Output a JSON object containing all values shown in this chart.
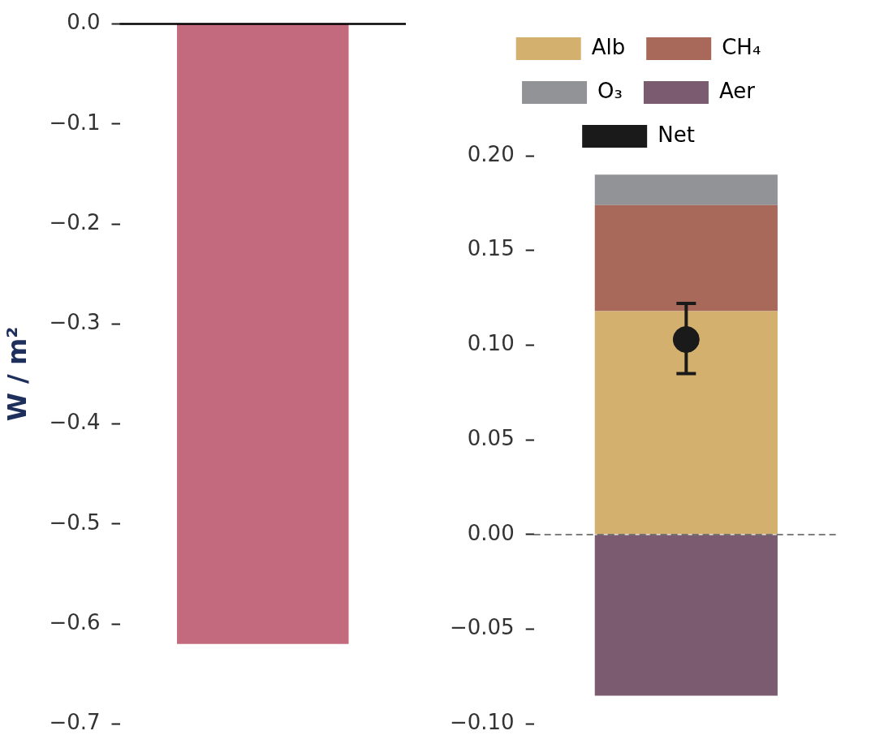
{
  "chart_data": [
    {
      "type": "bar",
      "ylabel": "W / m²",
      "categories": [
        null
      ],
      "values": [
        -0.62
      ],
      "color": "#c46a7e",
      "ylim": [
        -0.7,
        0
      ],
      "yticks": [
        {
          "value": 0,
          "label": "0.0"
        },
        {
          "value": -0.1,
          "label": "−0.1"
        },
        {
          "value": -0.2,
          "label": "−0.2"
        },
        {
          "value": -0.3,
          "label": "−0.3"
        },
        {
          "value": -0.4,
          "label": "−0.4"
        },
        {
          "value": -0.5,
          "label": "−0.5"
        },
        {
          "value": -0.6,
          "label": "−0.6"
        },
        {
          "value": -0.7,
          "label": "−0.7"
        }
      ],
      "ref_lines": [
        {
          "axis": "y",
          "value": 0,
          "color": "#000000",
          "line_style": "solid"
        }
      ],
      "grid": false,
      "legend": false
    },
    {
      "type": "bar",
      "stacked": true,
      "categories": [
        null
      ],
      "legend": "top",
      "grid": false,
      "ylim": [
        -0.1,
        0.2
      ],
      "yticks": [
        {
          "value": 0.2,
          "label": "0.20"
        },
        {
          "value": 0.15,
          "label": "0.15"
        },
        {
          "value": 0.1,
          "label": "0.10"
        },
        {
          "value": 0.05,
          "label": "0.05"
        },
        {
          "value": 0,
          "label": "0.00"
        },
        {
          "value": -0.05,
          "label": "−0.05"
        },
        {
          "value": -0.1,
          "label": "−0.10"
        }
      ],
      "ref_lines": [
        {
          "axis": "y",
          "value": 0,
          "color": "#555555",
          "line_style": "dashed"
        }
      ],
      "series": [
        {
          "name": "Alb",
          "color": "#d4b06f",
          "values": [
            0.118
          ]
        },
        {
          "name": "CH₄",
          "color": "#a8685a",
          "values": [
            0.056
          ]
        },
        {
          "name": "O₃",
          "color": "#929396",
          "values": [
            0.016
          ]
        },
        {
          "name": "Aer",
          "color": "#7b5b70",
          "values": [
            -0.085
          ]
        },
        {
          "name": "Net",
          "type": "scatter",
          "marker": "circle",
          "color": "#1a1a1a",
          "values": [
            0.103
          ],
          "errors": [
            [
              0.085,
              0.122
            ]
          ]
        }
      ]
    }
  ]
}
